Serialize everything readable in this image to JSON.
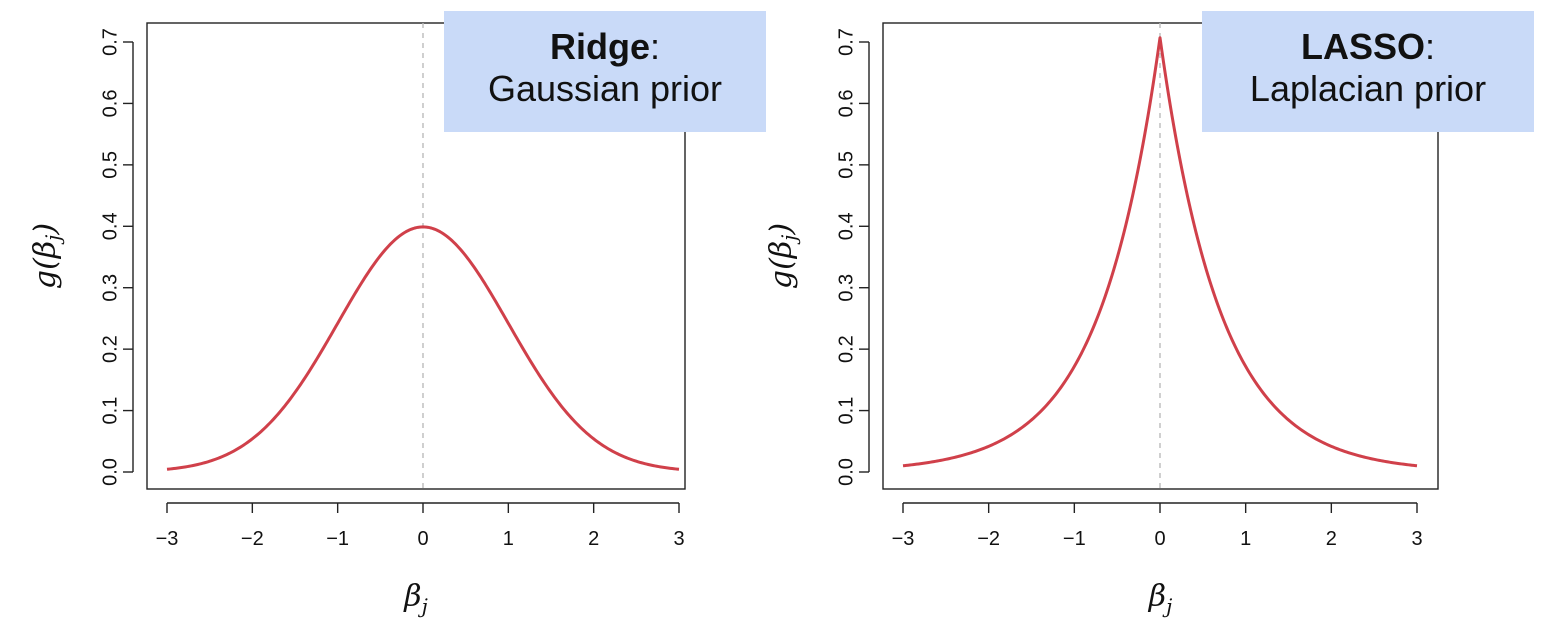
{
  "chart_data": [
    {
      "type": "line",
      "title": "",
      "callout": {
        "title": "Ridge",
        "suffix": ":",
        "subtitle": "Gaussian prior"
      },
      "xlabel": "β",
      "xlabel_sub": "j",
      "ylabel": "g(β",
      "ylabel_sub": "j",
      "ylabel_close": ")",
      "xlim": [
        -3,
        3
      ],
      "ylim": [
        0.0,
        0.7
      ],
      "xticks": [
        -3,
        -2,
        -1,
        0,
        1,
        2,
        3
      ],
      "xtick_labels": [
        "−3",
        "−2",
        "−1",
        "0",
        "1",
        "2",
        "3"
      ],
      "yticks": [
        0.0,
        0.1,
        0.2,
        0.3,
        0.4,
        0.5,
        0.6,
        0.7
      ],
      "ytick_labels": [
        "0.0",
        "0.1",
        "0.2",
        "0.3",
        "0.4",
        "0.5",
        "0.6",
        "0.7"
      ],
      "reference_line_x": 0,
      "grid": false,
      "line_color": "#d0404a",
      "series": [
        {
          "x": [
            -3.0,
            -2.5,
            -2.0,
            -1.5,
            -1.0,
            -0.5,
            0.0,
            0.5,
            1.0,
            1.5,
            2.0,
            2.5,
            3.0
          ],
          "y": [
            0.004,
            0.018,
            0.054,
            0.13,
            0.242,
            0.352,
            0.399,
            0.352,
            0.242,
            0.13,
            0.054,
            0.018,
            0.004
          ]
        }
      ]
    },
    {
      "type": "line",
      "title": "",
      "callout": {
        "title": "LASSO",
        "suffix": ":",
        "subtitle": "Laplacian prior"
      },
      "xlabel": "β",
      "xlabel_sub": "j",
      "ylabel": "g(β",
      "ylabel_sub": "j",
      "ylabel_close": ")",
      "xlim": [
        -3,
        3
      ],
      "ylim": [
        0.0,
        0.7
      ],
      "xticks": [
        -3,
        -2,
        -1,
        0,
        1,
        2,
        3
      ],
      "xtick_labels": [
        "−3",
        "−2",
        "−1",
        "0",
        "1",
        "2",
        "3"
      ],
      "yticks": [
        0.0,
        0.1,
        0.2,
        0.3,
        0.4,
        0.5,
        0.6,
        0.7
      ],
      "ytick_labels": [
        "0.0",
        "0.1",
        "0.2",
        "0.3",
        "0.4",
        "0.5",
        "0.6",
        "0.7"
      ],
      "reference_line_x": 0,
      "grid": false,
      "line_color": "#d0404a",
      "series": [
        {
          "x": [
            -3.0,
            -2.5,
            -2.0,
            -1.5,
            -1.0,
            -0.5,
            -0.25,
            0.0,
            0.25,
            0.5,
            1.0,
            1.5,
            2.0,
            2.5,
            3.0
          ],
          "y": [
            0.01,
            0.021,
            0.042,
            0.085,
            0.171,
            0.347,
            0.494,
            0.707,
            0.494,
            0.347,
            0.171,
            0.085,
            0.042,
            0.021,
            0.01
          ]
        }
      ]
    }
  ]
}
